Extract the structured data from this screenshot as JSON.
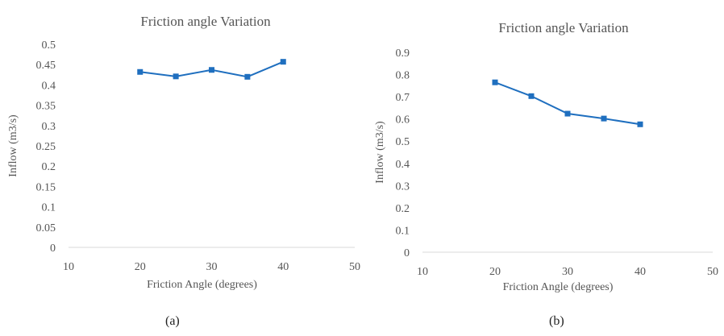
{
  "chart_data": [
    {
      "type": "line",
      "title": "Friction angle Variation",
      "xlabel": "Friction Angle  (degrees)",
      "ylabel": "Inflow  (m3/s)",
      "xlim": [
        10,
        50
      ],
      "ylim": [
        0,
        0.5
      ],
      "x_ticks": [
        "10",
        "20",
        "30",
        "40",
        "50"
      ],
      "y_ticks": [
        "0",
        "0.05",
        "0.1",
        "0.15",
        "0.2",
        "0.25",
        "0.3",
        "0.35",
        "0.4",
        "0.45",
        "0.5"
      ],
      "series": [
        {
          "x": [
            20,
            25,
            30,
            35,
            40
          ],
          "values": [
            0.432,
            0.421,
            0.437,
            0.42,
            0.457
          ],
          "color": "#1f6fbf"
        }
      ],
      "caption": "(a)"
    },
    {
      "type": "line",
      "title": "Friction angle Variation",
      "xlabel": "Friction Angle  (degrees)",
      "ylabel": "Inflow  (m3/s)",
      "xlim": [
        10,
        50
      ],
      "ylim": [
        0,
        0.9
      ],
      "x_ticks": [
        "10",
        "20",
        "30",
        "40",
        "50"
      ],
      "y_ticks": [
        "0",
        "0.1",
        "0.2",
        "0.3",
        "0.4",
        "0.5",
        "0.6",
        "0.7",
        "0.8",
        "0.9"
      ],
      "series": [
        {
          "x": [
            20,
            25,
            30,
            35,
            40
          ],
          "values": [
            0.765,
            0.703,
            0.624,
            0.602,
            0.576
          ],
          "color": "#1f6fbf"
        }
      ],
      "caption": "(b)"
    }
  ]
}
